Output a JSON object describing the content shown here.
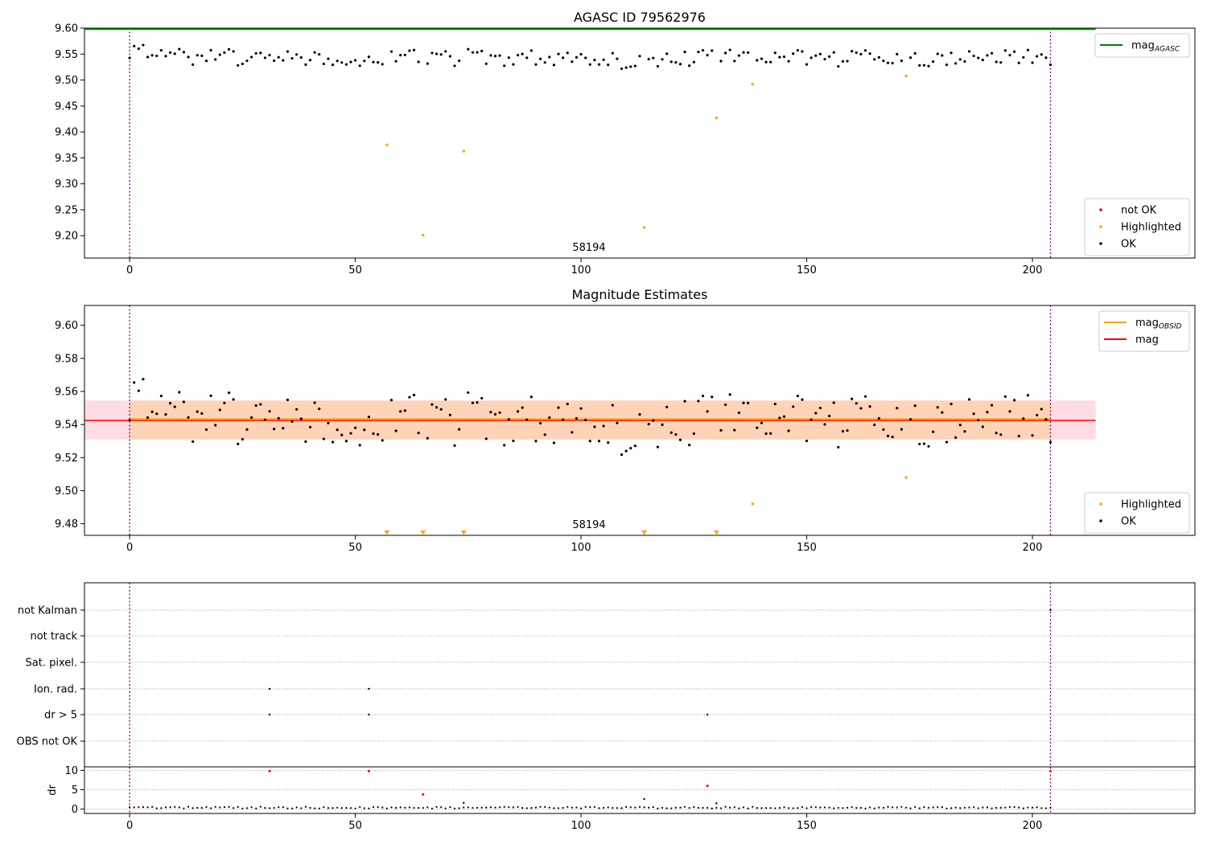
{
  "chart_data": [
    {
      "type": "scatter",
      "title": "AGASC ID 79562976",
      "xlim": [
        -10,
        236
      ],
      "ylim": [
        9.157,
        9.6
      ],
      "xticks": [
        0,
        50,
        100,
        150,
        200
      ],
      "yticks": [
        9.2,
        9.25,
        9.3,
        9.35,
        9.4,
        9.45,
        9.5,
        9.55,
        9.6
      ],
      "ytick_labels": [
        "9.20",
        "9.25",
        "9.30",
        "9.35",
        "9.40",
        "9.45",
        "9.50",
        "9.55",
        "9.60"
      ],
      "obsid_label": "58194",
      "vlines": [
        0,
        204
      ],
      "hline": {
        "name": "mag_AGASC",
        "label": "mag",
        "label_sub": "AGASC",
        "y": 9.598,
        "x_range": [
          -10,
          214
        ],
        "color": "#008000"
      },
      "legend_top": {
        "position": "top-right",
        "entries": [
          {
            "label": "mag",
            "sub": "AGASC",
            "kind": "line",
            "color": "#008000"
          }
        ]
      },
      "legend_bottom": {
        "position": "lower-right",
        "entries": [
          {
            "label": "not OK",
            "kind": "dot",
            "color": "#ff0000"
          },
          {
            "label": "Highlighted",
            "kind": "dot",
            "color": "#ffa500"
          },
          {
            "label": "OK",
            "kind": "dot",
            "color": "#000000"
          }
        ]
      },
      "series": [
        {
          "name": "Highlighted",
          "color": "#ffa500",
          "x": [
            57,
            65,
            74,
            114,
            130,
            138,
            172
          ],
          "y": [
            9.375,
            9.201,
            9.363,
            9.216,
            9.427,
            9.492,
            9.508
          ]
        }
      ]
    },
    {
      "type": "scatter",
      "title": "Magnitude Estimates",
      "xlim": [
        -10,
        236
      ],
      "ylim": [
        9.473,
        9.612
      ],
      "xticks": [
        0,
        50,
        100,
        150,
        200
      ],
      "yticks": [
        9.48,
        9.5,
        9.52,
        9.54,
        9.56,
        9.58,
        9.6
      ],
      "ytick_labels": [
        "9.48",
        "9.50",
        "9.52",
        "9.54",
        "9.56",
        "9.58",
        "9.60"
      ],
      "obsid_label": "58194",
      "vlines": [
        0,
        204
      ],
      "mag": {
        "label": "mag",
        "y": 9.5425,
        "band": [
          9.531,
          9.5545
        ],
        "color": "#ff0000",
        "band_color": "#ffd6dc",
        "x_range": [
          -10,
          214
        ]
      },
      "mag_obsid": {
        "label": "mag",
        "sub": "OBSID",
        "y": 9.5432,
        "band": [
          9.531,
          9.5545
        ],
        "color": "#ffa500",
        "band_color": "#ffd2b4",
        "x_range": [
          0,
          204
        ]
      },
      "legend_top": {
        "position": "top-right",
        "entries": [
          {
            "label": "mag",
            "sub": "OBSID",
            "kind": "line",
            "color": "#ffa500"
          },
          {
            "label": "mag",
            "kind": "line",
            "color": "#ff0000"
          }
        ]
      },
      "legend_bottom": {
        "position": "lower-right",
        "entries": [
          {
            "label": "Highlighted",
            "kind": "dot",
            "color": "#ffa500"
          },
          {
            "label": "OK",
            "kind": "dot",
            "color": "#000000"
          }
        ]
      },
      "series": [
        {
          "name": "Highlighted",
          "color": "#ffa500",
          "x": [
            138,
            172
          ],
          "y": [
            9.492,
            9.508
          ]
        },
        {
          "name": "Highlighted (below axis)",
          "color": "#ffa500",
          "marker": "triangle-down",
          "x": [
            57,
            65,
            74,
            114,
            130
          ],
          "y": [
            9.4745,
            9.4745,
            9.4745,
            9.4745,
            9.4745
          ]
        }
      ]
    },
    {
      "type": "scatter",
      "title": "",
      "xlim": [
        -10,
        236
      ],
      "xticks": [
        0,
        50,
        100,
        150,
        200
      ],
      "vlines": [
        0,
        204
      ],
      "flag_rows": [
        "not Kalman",
        "not track",
        "Sat. pixel.",
        "Ion. rad.",
        "dr > 5",
        "OBS not OK"
      ],
      "flags": [
        {
          "row": "Ion. rad.",
          "x": [
            31,
            53
          ]
        },
        {
          "row": "dr > 5",
          "x": [
            31,
            53,
            128
          ]
        },
        {
          "row": "not Kalman",
          "x": [
            204
          ]
        }
      ],
      "dr": {
        "ylabel": "dr",
        "ylim": [
          -0.5,
          10.5
        ],
        "yticks": [
          0,
          5,
          10
        ],
        "ytick_labels": [
          "0",
          "5",
          "10"
        ],
        "red_points": {
          "x": [
            31,
            53,
            65,
            128,
            204
          ],
          "y": [
            9.8,
            9.8,
            3.8,
            6.0,
            9.8
          ]
        },
        "spikes": {
          "x": [
            74,
            114,
            130
          ],
          "y": [
            1.6,
            2.6,
            1.5
          ]
        }
      }
    }
  ]
}
